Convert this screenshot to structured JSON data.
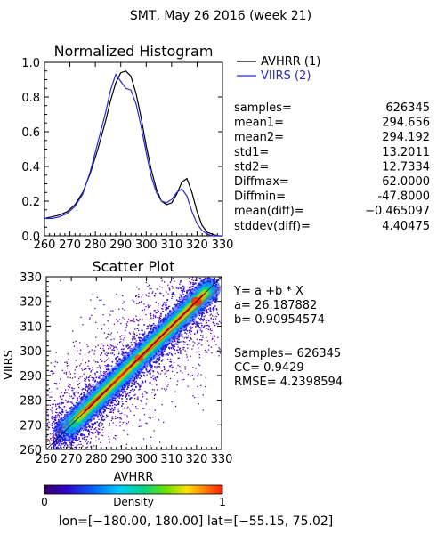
{
  "page": {
    "header": "SMT,  May 26 2016 (week 21)",
    "footer": "lon=[−180.00, 180.00] lat=[−55.15, 75.02]"
  },
  "colors": {
    "avhrr": "#000000",
    "viirs": "#2a2ad4"
  },
  "histogram": {
    "title": "Normalized Histogram",
    "legend": [
      {
        "label": "AVHRR (1)",
        "color": "#000000"
      },
      {
        "label": "VIIRS (2)",
        "color": "#2a2ad4"
      }
    ],
    "y_ticks": [
      "0.0",
      "0.2",
      "0.4",
      "0.6",
      "0.8",
      "1.0"
    ],
    "x_ticks": [
      "260",
      "270",
      "280",
      "290",
      "300",
      "310",
      "320",
      "330"
    ]
  },
  "stats": [
    {
      "label": "samples=",
      "value": "626345"
    },
    {
      "label": "mean1=",
      "value": "294.656"
    },
    {
      "label": "mean2=",
      "value": "294.192"
    },
    {
      "label": "std1=",
      "value": "13.2011"
    },
    {
      "label": "std2=",
      "value": "12.7334"
    },
    {
      "label": "Diffmax=",
      "value": "62.0000"
    },
    {
      "label": "Diffmin=",
      "value": "-47.8000"
    },
    {
      "label": "mean(diff)=",
      "value": "−0.465097"
    },
    {
      "label": "stddev(diff)=",
      "value": "4.40475"
    }
  ],
  "scatter": {
    "title": "Scatter Plot",
    "xlabel": "AVHRR",
    "ylabel": "VIIRS",
    "x_ticks": [
      "260",
      "270",
      "280",
      "290",
      "300",
      "310",
      "320",
      "330"
    ],
    "y_ticks": [
      "260",
      "270",
      "280",
      "290",
      "300",
      "310",
      "320",
      "330"
    ],
    "regression": {
      "eq": "Y= a +b * X",
      "a": "a= 26.187882",
      "b": "b= 0.90954574"
    },
    "metrics": {
      "samples": "Samples= 626345",
      "cc": "CC=  0.9429",
      "rmse": "RMSE= 4.2398594"
    }
  },
  "colorbar": {
    "label": "Density",
    "min": "0",
    "max": "1"
  },
  "chart_data": [
    {
      "type": "line",
      "title": "Normalized Histogram",
      "xlim": [
        260,
        330
      ],
      "ylim": [
        0,
        1
      ],
      "series": [
        {
          "name": "AVHRR (1)",
          "x": [
            260,
            263,
            266,
            269,
            272,
            275,
            278,
            281,
            284,
            286,
            288,
            290,
            292,
            294,
            296,
            298,
            300,
            302,
            304,
            306,
            308,
            310,
            312,
            314,
            316,
            318,
            320,
            322,
            324,
            326,
            328,
            330
          ],
          "values": [
            0.1,
            0.11,
            0.12,
            0.14,
            0.18,
            0.25,
            0.36,
            0.5,
            0.66,
            0.78,
            0.88,
            0.94,
            0.95,
            0.92,
            0.82,
            0.68,
            0.52,
            0.38,
            0.27,
            0.2,
            0.18,
            0.19,
            0.24,
            0.31,
            0.33,
            0.25,
            0.14,
            0.06,
            0.02,
            0.01,
            0.0,
            0.0
          ]
        },
        {
          "name": "VIIRS (2)",
          "x": [
            260,
            263,
            266,
            269,
            272,
            275,
            278,
            281,
            284,
            286,
            288,
            290,
            292,
            294,
            296,
            298,
            300,
            302,
            304,
            306,
            308,
            310,
            312,
            314,
            316,
            318,
            320,
            322,
            324,
            326,
            328,
            330
          ],
          "values": [
            0.1,
            0.1,
            0.11,
            0.13,
            0.17,
            0.24,
            0.37,
            0.54,
            0.71,
            0.84,
            0.93,
            0.89,
            0.85,
            0.84,
            0.76,
            0.63,
            0.48,
            0.34,
            0.25,
            0.2,
            0.19,
            0.21,
            0.25,
            0.27,
            0.23,
            0.14,
            0.07,
            0.03,
            0.01,
            0.0,
            0.0,
            0.0
          ]
        }
      ]
    },
    {
      "type": "heatmap",
      "title": "Scatter Plot",
      "xlabel": "AVHRR",
      "ylabel": "VIIRS",
      "xlim": [
        260,
        330
      ],
      "ylim": [
        260,
        330
      ],
      "regression": {
        "a": 26.187882,
        "b": 0.90954574
      },
      "samples": 626345,
      "cc": 0.9429,
      "rmse": 4.2398594,
      "colorbar": {
        "label": "Density",
        "range": [
          0,
          1
        ]
      }
    }
  ]
}
